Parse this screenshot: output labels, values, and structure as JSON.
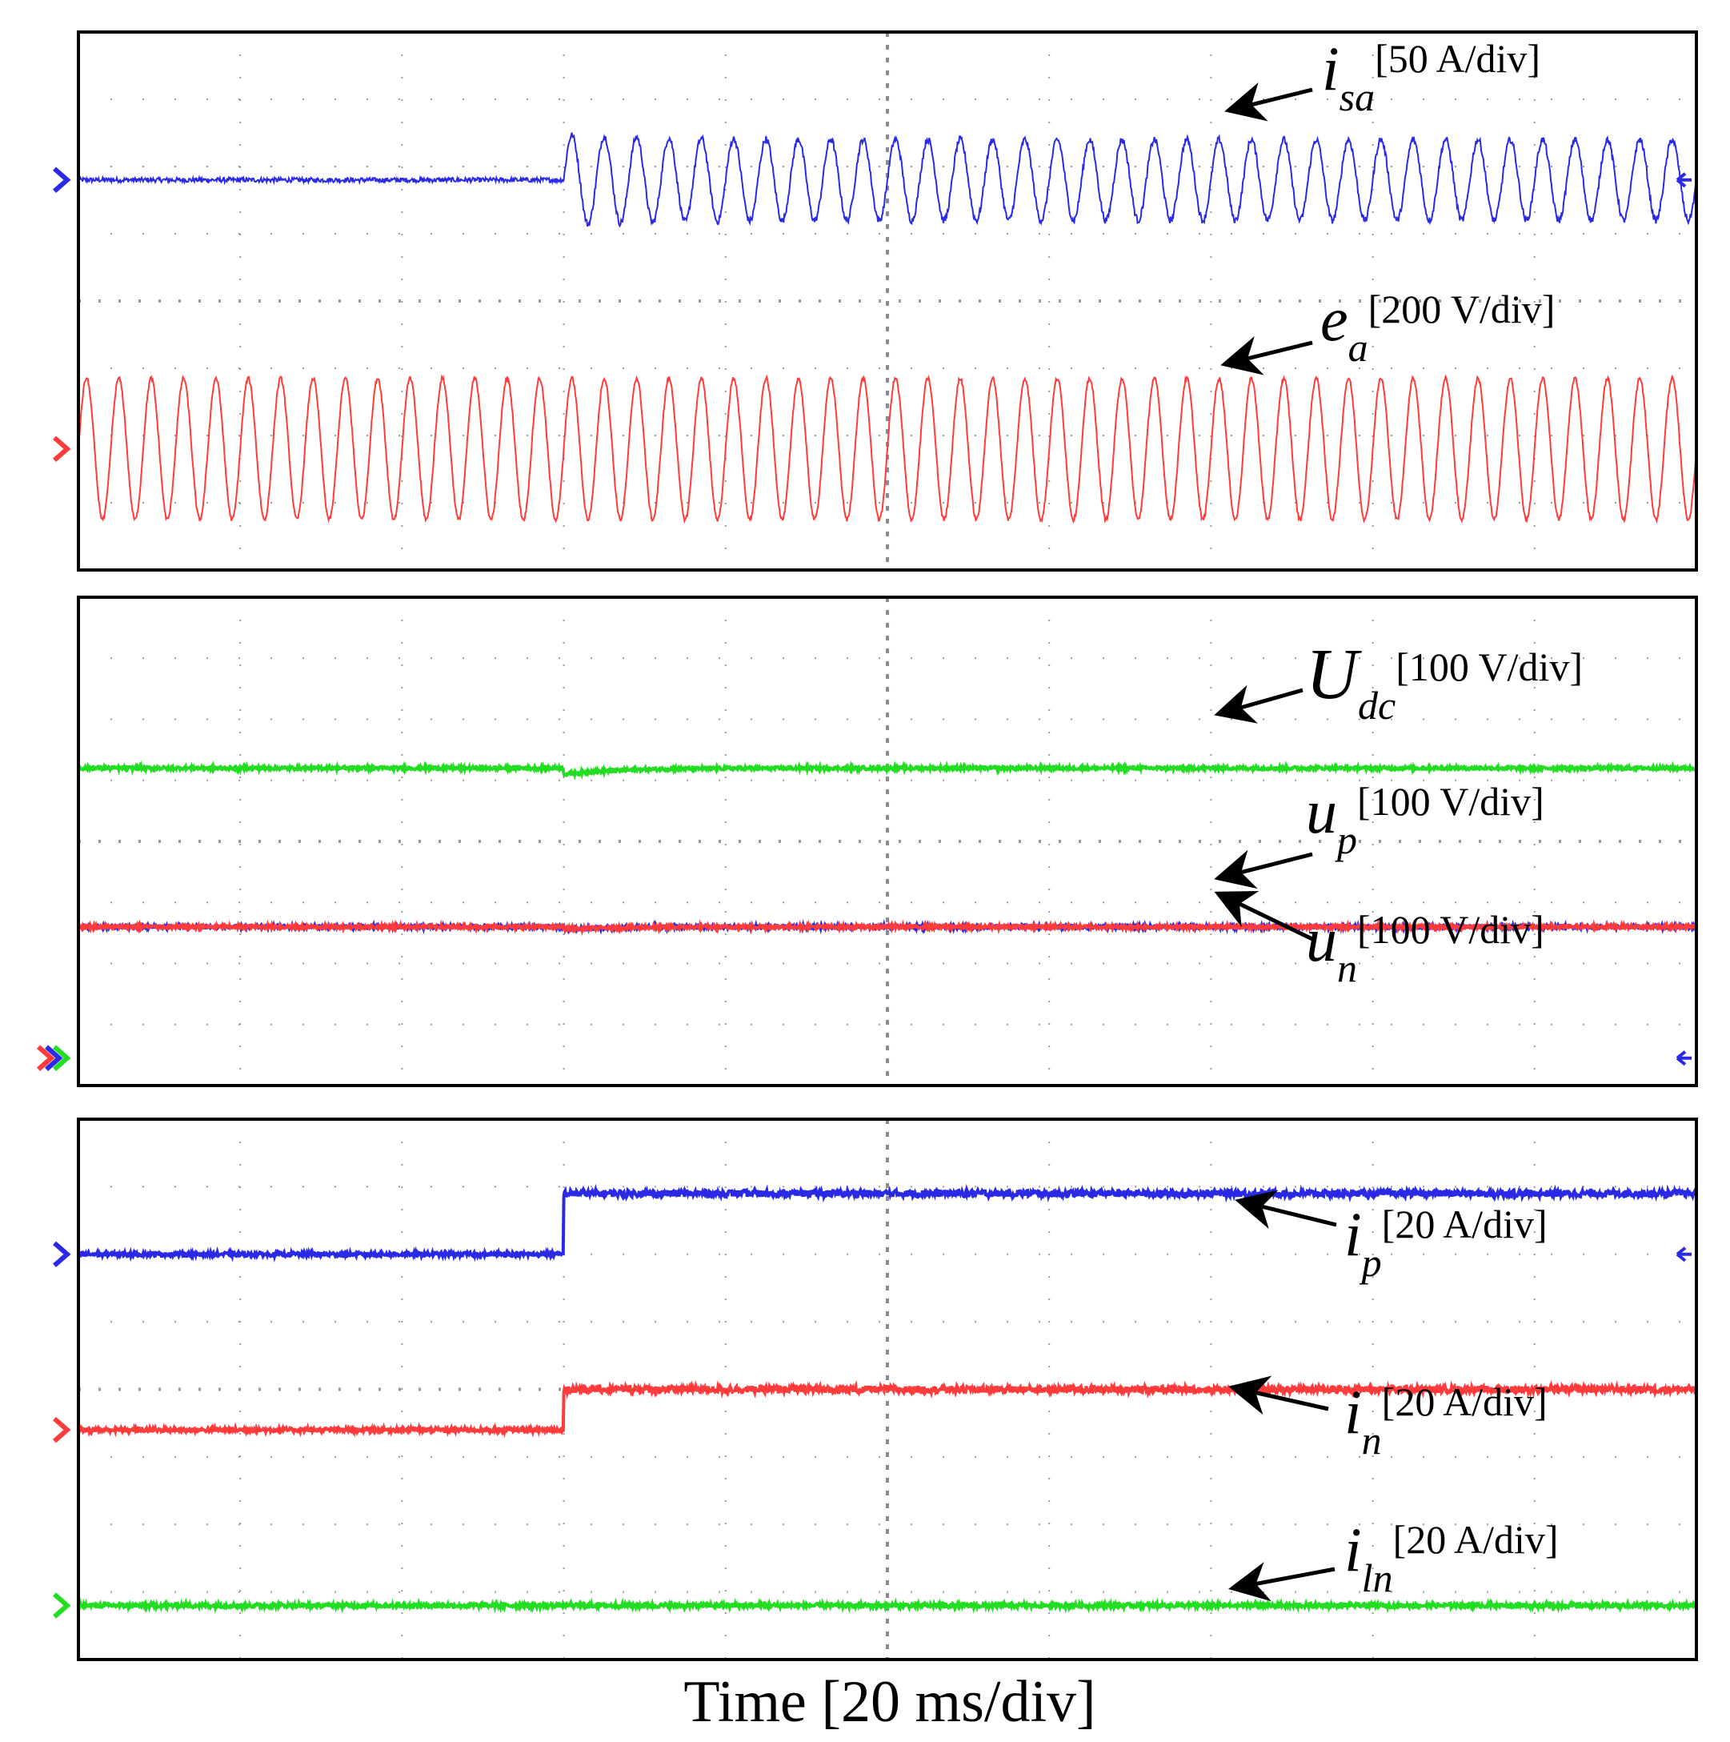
{
  "chart_data": [
    {
      "type": "line",
      "panel": "top",
      "grid": true,
      "x_divisions": 10,
      "y_divisions": 8,
      "step_time_div": 3,
      "series": [
        {
          "symbol": "i",
          "subscript": "sa",
          "scale": "[50 A/div]",
          "color": "#2a2ae6",
          "waveform": "sine-after-step",
          "offset_div": 5.8,
          "amplitude_before_div": 0.02,
          "amplitude_after_div": 0.6,
          "cycles_per_div": 5
        },
        {
          "symbol": "e",
          "subscript": "a",
          "scale": "[200 V/div]",
          "color": "#ff3b3b",
          "waveform": "sine",
          "offset_div": 1.8,
          "amplitude_div": 1.05,
          "cycles_per_div": 5
        }
      ]
    },
    {
      "type": "line",
      "panel": "middle",
      "grid": true,
      "x_divisions": 10,
      "y_divisions": 8,
      "step_time_div": 3,
      "series": [
        {
          "symbol": "U",
          "subscript": "dc",
          "scale": "[100 V/div]",
          "color": "#22dd22",
          "waveform": "dc-with-dip",
          "offset_div": 5.2,
          "dip_div": 0.1
        },
        {
          "symbol": "u",
          "subscript": "p",
          "scale": "[100 V/div]",
          "color": "#2a2ae6",
          "waveform": "dc-with-dip",
          "offset_div": 2.6,
          "dip_div": 0.04
        },
        {
          "symbol": "u",
          "subscript": "n",
          "scale": "[100 V/div]",
          "color": "#ff3b3b",
          "waveform": "dc-with-dip",
          "offset_div": 2.6,
          "dip_div": 0.04
        }
      ]
    },
    {
      "type": "line",
      "panel": "bottom",
      "grid": true,
      "x_divisions": 10,
      "y_divisions": 8,
      "step_time_div": 3,
      "series": [
        {
          "symbol": "i",
          "subscript": "p",
          "scale": "[20 A/div]",
          "color": "#2a2ae6",
          "waveform": "step",
          "level_before_div": 6,
          "level_after_div": 6.9
        },
        {
          "symbol": "i",
          "subscript": "n",
          "scale": "[20 A/div]",
          "color": "#ff3b3b",
          "waveform": "step",
          "level_before_div": 3.4,
          "level_after_div": 4.0
        },
        {
          "symbol": "i",
          "subscript": "ln",
          "scale": "[20 A/div]",
          "color": "#22dd22",
          "waveform": "dc",
          "level_div": 0.8
        }
      ]
    }
  ],
  "xlabel": "Time [20 ms/div]"
}
